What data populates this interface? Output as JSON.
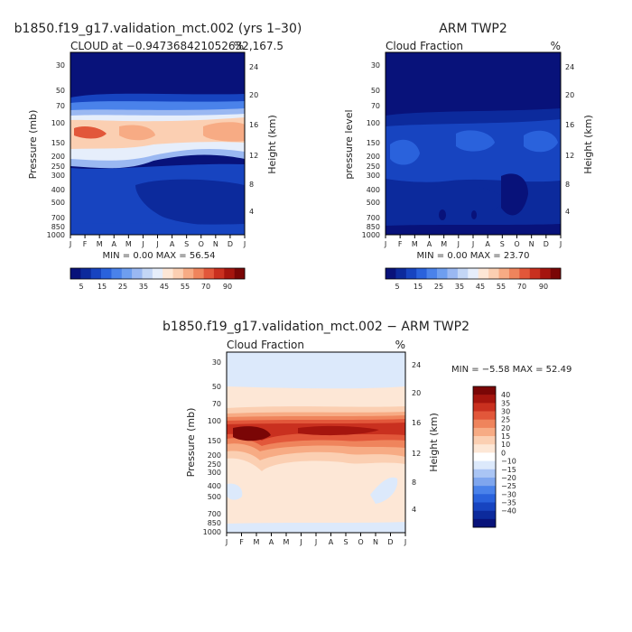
{
  "colorbar_palette": [
    "#08127a",
    "#0c2a9c",
    "#1744c0",
    "#2a62dc",
    "#4a82ea",
    "#6e9eef",
    "#9ab8f2",
    "#c3d6f6",
    "#e6eefb",
    "#fde7d6",
    "#fbcfb2",
    "#f7ab84",
    "#ef845c",
    "#e2573a",
    "#c9301f",
    "#a5150e",
    "#7a0606"
  ],
  "chart_data": [
    {
      "type": "heatmap",
      "title": "b1850.f19_g17.validation_mct.002 (yrs 1–30)",
      "subtitle_left": "CLOUD at −0.947368421052632,167.5",
      "subtitle_right": "%",
      "ylabel_left": "Pressure (mb)",
      "ylabel_right": "Height (km)",
      "x": [
        "J",
        "F",
        "M",
        "A",
        "M",
        "J",
        "J",
        "A",
        "S",
        "O",
        "N",
        "D",
        "J"
      ],
      "pressure_ticks": [
        30,
        50,
        70,
        100,
        150,
        200,
        250,
        300,
        400,
        500,
        700,
        850,
        1000
      ],
      "height_ticks": [
        4,
        8,
        12,
        16,
        20,
        24
      ],
      "minmax_text": "MIN =     0.00 MAX =   56.54",
      "min": 0.0,
      "max": 56.54,
      "colorbar_labels": [
        "5",
        "15",
        "25",
        "35",
        "45",
        "55",
        "70",
        "90"
      ]
    },
    {
      "type": "heatmap",
      "title": "ARM TWP2",
      "subtitle_left": "Cloud Fraction",
      "subtitle_right": "%",
      "ylabel_left": "pressure level",
      "ylabel_right": "Height (km)",
      "x": [
        "J",
        "F",
        "M",
        "A",
        "M",
        "J",
        "J",
        "A",
        "S",
        "O",
        "N",
        "D",
        "J"
      ],
      "pressure_ticks": [
        30,
        50,
        70,
        100,
        150,
        200,
        250,
        300,
        400,
        500,
        700,
        850,
        1000
      ],
      "height_ticks": [
        4,
        8,
        12,
        16,
        20,
        24
      ],
      "minmax_text": "MIN =     0.00 MAX =   23.70",
      "min": 0.0,
      "max": 23.7,
      "colorbar_labels": [
        "5",
        "15",
        "25",
        "35",
        "45",
        "55",
        "70",
        "90"
      ]
    },
    {
      "type": "heatmap",
      "title": "b1850.f19_g17.validation_mct.002 − ARM TWP2",
      "subtitle_left": "Cloud Fraction",
      "subtitle_right": "%",
      "ylabel_left": "Pressure (mb)",
      "ylabel_right": "Height (km)",
      "x": [
        "J",
        "F",
        "M",
        "A",
        "M",
        "J",
        "J",
        "A",
        "S",
        "O",
        "N",
        "D",
        "J"
      ],
      "pressure_ticks": [
        30,
        50,
        70,
        100,
        150,
        200,
        250,
        300,
        400,
        500,
        700,
        850,
        1000
      ],
      "height_ticks": [
        4,
        8,
        12,
        16,
        20,
        24
      ],
      "minmax_text": "MIN =   −5.58 MAX =   52.49",
      "min": -5.58,
      "max": 52.49,
      "colorbar_labels": [
        "40",
        "35",
        "30",
        "25",
        "20",
        "15",
        "10",
        "0",
        "−10",
        "−15",
        "−20",
        "−25",
        "−30",
        "−35",
        "−40"
      ]
    }
  ]
}
